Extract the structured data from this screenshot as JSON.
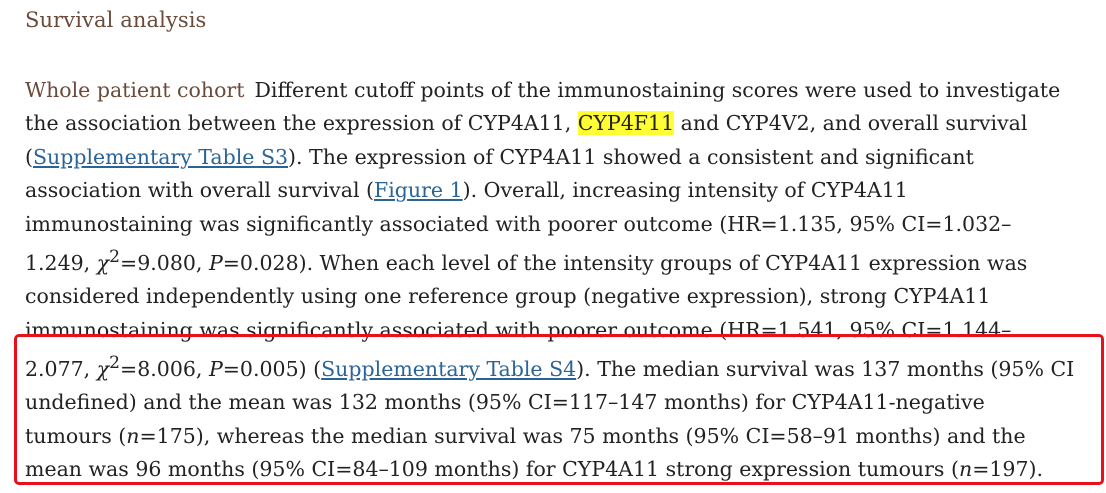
{
  "section": {
    "title": "Survival analysis"
  },
  "paragraph": {
    "subheading": "Whole patient cohort",
    "lines": {
      "l1": "Different cutoff points of the immunostaining scores were used to investigate",
      "l2_pre": "the association between the expression of CYP4A11, ",
      "l2_highlight": "CYP4F11",
      "l2_post": " and CYP4V2, and overall survival",
      "l3_open": "(",
      "l3_link": "Supplementary Table S3",
      "l3_post": "). The expression of CYP4A11 showed a consistent and significant",
      "l4_pre": "association with overall survival (",
      "l4_link": "Figure 1",
      "l4_post": "). Overall, increasing intensity of CYP4A11",
      "l5": "immunostaining was significantly associated with poorer outcome (HR=1.135, 95% CI=1.032–",
      "l6_pre": "1.249, ",
      "l6_chi": "χ",
      "l6_sup": "2",
      "l6_mid": "=9.080, ",
      "l6_p": "P",
      "l6_post": "=0.028). When each level of the intensity groups of CYP4A11 expression was",
      "l7": "considered independently using one reference group (negative expression), strong CYP4A11",
      "l8": "immunostaining was significantly associated with poorer outcome (HR=1.541, 95% CI=1.144–",
      "l9_pre": "2.077, ",
      "l9_chi": "χ",
      "l9_sup": "2",
      "l9_mid": "=8.006, ",
      "l9_p": "P",
      "l9_mid2": "=0.005) (",
      "l9_link": "Supplementary Table S4",
      "l9_post": "). The median survival was 137 months (95% CI",
      "l10": "undefined) and the mean was 132 months (95% CI=117–147 months) for CYP4A11-negative",
      "l11_pre": "tumours (",
      "l11_n": "n",
      "l11_post": "=175), whereas the median survival was 75 months (95% CI=58–91 months) and the",
      "l12_pre": "mean was 96 months (95% CI=84–109 months) for CYP4A11 strong expression tumours (",
      "l12_n": "n",
      "l12_post": "=197)."
    }
  },
  "colors": {
    "heading": "#6a4a3a",
    "body_text": "#222222",
    "link": "#2a6496",
    "highlight": "#ffff33",
    "annotation_box": "#e8101a"
  }
}
